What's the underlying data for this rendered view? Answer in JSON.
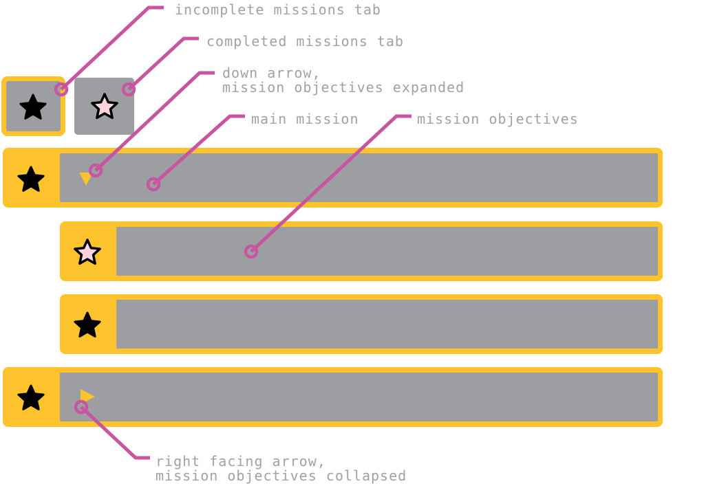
{
  "colors": {
    "frame": "#fcc32d",
    "panel": "#9d9ea2",
    "star_incomplete": "#000000",
    "star_completed": "#fdd3de",
    "leader": "#c8559f",
    "label": "#a2a2a6"
  },
  "tabs": [
    {
      "id": "incomplete",
      "icon": "star-filled-icon",
      "selected": true
    },
    {
      "id": "completed",
      "icon": "star-outline-icon",
      "selected": false
    }
  ],
  "missions": [
    {
      "kind": "main",
      "icon": "star-filled-icon",
      "arrow": "down",
      "expanded": true
    },
    {
      "kind": "objective",
      "icon": "star-outline-icon"
    },
    {
      "kind": "objective",
      "icon": "star-filled-icon"
    },
    {
      "kind": "main",
      "icon": "star-filled-icon",
      "arrow": "right",
      "expanded": false
    }
  ],
  "annotations": {
    "incomplete_tab": "incomplete missions tab",
    "completed_tab": "completed missions tab",
    "down_arrow_1": "down arrow,",
    "down_arrow_2": "mission objectives expanded",
    "main_mission": "main mission",
    "mission_objectives": "mission objectives",
    "right_arrow_1": "right facing arrow,",
    "right_arrow_2": "mission objectives collapsed"
  }
}
